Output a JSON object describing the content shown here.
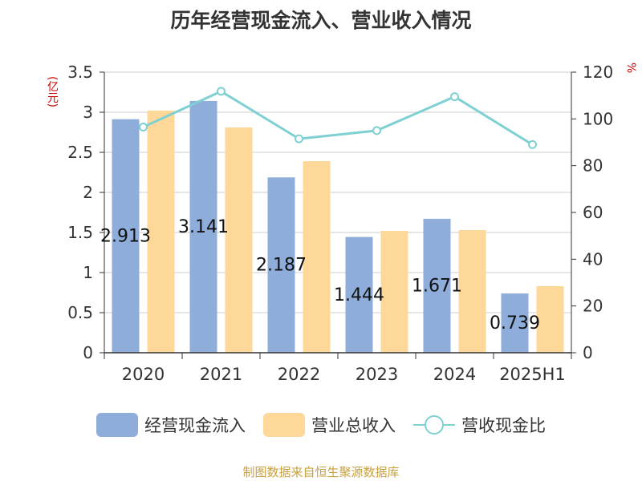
{
  "chart_data": {
    "type": "bar",
    "title": "历年经营现金流入、营业收入情况",
    "categories": [
      "2020",
      "2021",
      "2022",
      "2023",
      "2024",
      "2025H1"
    ],
    "y_left": {
      "unit": "(亿元)",
      "ylim": [
        0,
        3.5
      ],
      "ticks": [
        "0",
        "0.5",
        "1",
        "1.5",
        "2",
        "2.5",
        "3",
        "3.5"
      ]
    },
    "y_right": {
      "unit": "%",
      "ylim": [
        0,
        120
      ],
      "ticks": [
        "0",
        "20",
        "40",
        "60",
        "80",
        "100",
        "120"
      ]
    },
    "series": [
      {
        "name": "经营现金流入",
        "type": "bar",
        "axis": "left",
        "color": "#8eadda",
        "values": [
          2.913,
          3.141,
          2.187,
          1.444,
          1.671,
          0.739
        ],
        "labels": [
          "2.913",
          "3.141",
          "2.187",
          "1.444",
          "1.671",
          "0.739"
        ]
      },
      {
        "name": "营业总收入",
        "type": "bar",
        "axis": "left",
        "color": "#fdd899",
        "values": [
          3.02,
          2.81,
          2.39,
          1.52,
          1.53,
          0.83
        ]
      },
      {
        "name": "营收现金比",
        "type": "line",
        "axis": "right",
        "color": "#7fd0d2",
        "values": [
          96.5,
          111.8,
          91.5,
          95,
          109.5,
          89
        ]
      }
    ],
    "grid": true,
    "legend_position": "bottom"
  },
  "source": "制图数据来自恒生聚源数据库"
}
